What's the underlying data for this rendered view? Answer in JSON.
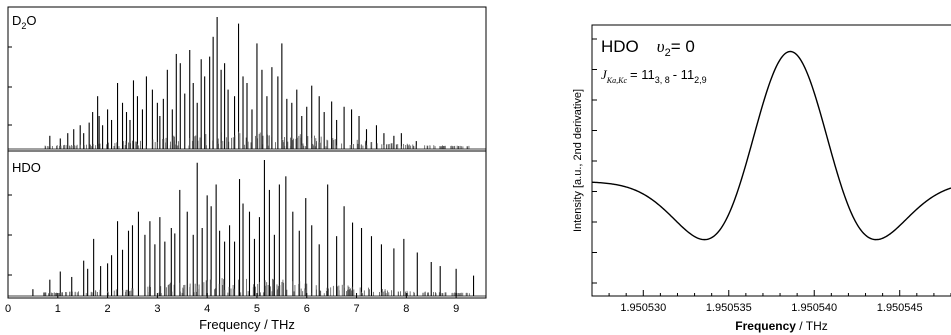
{
  "chart_data": [
    {
      "type": "line",
      "subtype": "stick-spectrum",
      "panels": [
        {
          "name": "D2O",
          "label_main": "D",
          "label_sub": "2",
          "label_end": "O"
        },
        {
          "name": "HDO",
          "label_main": "HDO"
        }
      ],
      "xlabel": "Frequency / THz",
      "xlim": [
        0,
        9.6
      ],
      "xticks": [
        "0",
        "1",
        "2",
        "3",
        "4",
        "5",
        "6",
        "7",
        "8",
        "9"
      ],
      "series": [
        {
          "name": "D2O",
          "x": [
            0.84,
            1.05,
            1.2,
            1.32,
            1.45,
            1.52,
            1.63,
            1.7,
            1.8,
            1.83,
            1.9,
            2.0,
            2.08,
            2.2,
            2.3,
            2.38,
            2.45,
            2.52,
            2.6,
            2.7,
            2.78,
            2.9,
            3.0,
            3.05,
            3.12,
            3.2,
            3.3,
            3.38,
            3.46,
            3.55,
            3.65,
            3.72,
            3.8,
            3.88,
            3.95,
            4.05,
            4.12,
            4.2,
            4.28,
            4.35,
            4.42,
            4.55,
            4.63,
            4.72,
            4.8,
            4.9,
            5.0,
            5.1,
            5.2,
            5.3,
            5.42,
            5.5,
            5.6,
            5.7,
            5.8,
            5.9,
            6.0,
            6.1,
            6.25,
            6.35,
            6.5,
            6.6,
            6.75,
            6.9,
            7.05,
            7.2,
            7.4,
            7.55,
            7.75,
            7.9,
            8.2
          ],
          "y": [
            0.1,
            0.08,
            0.12,
            0.15,
            0.18,
            0.12,
            0.2,
            0.28,
            0.4,
            0.25,
            0.18,
            0.3,
            0.22,
            0.5,
            0.35,
            0.28,
            0.22,
            0.52,
            0.4,
            0.3,
            0.55,
            0.45,
            0.35,
            0.25,
            0.38,
            0.6,
            0.3,
            0.72,
            0.65,
            0.42,
            0.75,
            0.5,
            0.35,
            0.68,
            0.55,
            0.7,
            0.85,
            1.0,
            0.6,
            0.65,
            0.45,
            0.4,
            0.95,
            0.55,
            0.5,
            0.3,
            0.8,
            0.6,
            0.4,
            0.62,
            0.55,
            0.8,
            0.38,
            0.35,
            0.45,
            0.25,
            0.32,
            0.48,
            0.4,
            0.28,
            0.36,
            0.22,
            0.32,
            0.3,
            0.25,
            0.15,
            0.18,
            0.12,
            0.1,
            0.12,
            0.06
          ]
        },
        {
          "name": "HDO",
          "x": [
            0.5,
            0.84,
            1.05,
            1.28,
            1.52,
            1.6,
            1.72,
            1.86,
            2.0,
            2.08,
            2.2,
            2.3,
            2.42,
            2.5,
            2.62,
            2.75,
            2.85,
            2.95,
            3.05,
            3.15,
            3.28,
            3.35,
            3.45,
            3.6,
            3.72,
            3.8,
            3.9,
            4.0,
            4.08,
            4.18,
            4.25,
            4.35,
            4.45,
            4.55,
            4.65,
            4.72,
            4.85,
            4.95,
            5.05,
            5.15,
            5.25,
            5.35,
            5.45,
            5.58,
            5.72,
            5.85,
            5.98,
            6.1,
            6.25,
            6.42,
            6.6,
            6.75,
            6.92,
            7.1,
            7.3,
            7.5,
            7.75,
            7.95,
            8.22,
            8.5,
            8.68,
            9.0,
            9.35
          ],
          "y": [
            0.05,
            0.12,
            0.18,
            0.14,
            0.26,
            0.2,
            0.42,
            0.22,
            0.24,
            0.3,
            0.55,
            0.34,
            0.48,
            0.52,
            0.62,
            0.45,
            0.55,
            0.38,
            0.58,
            0.4,
            0.5,
            0.46,
            0.78,
            0.62,
            0.45,
            0.98,
            0.5,
            0.74,
            0.66,
            0.82,
            0.48,
            0.4,
            0.52,
            0.4,
            0.86,
            0.68,
            0.62,
            0.42,
            0.58,
            1.0,
            0.78,
            0.45,
            0.82,
            0.88,
            0.62,
            0.48,
            0.72,
            0.52,
            0.38,
            0.82,
            0.44,
            0.66,
            0.54,
            0.5,
            0.44,
            0.38,
            0.35,
            0.42,
            0.32,
            0.25,
            0.22,
            0.2,
            0.15
          ]
        }
      ]
    },
    {
      "type": "line",
      "title_main": "HDO",
      "title_v": "υ",
      "title_v_sub": "2",
      "title_v_rest": "= 0",
      "line2_j": "J",
      "line2_j_sub": "Ka,Kc",
      "line2_eq": "= 11",
      "line2_a_sub": "3, 8",
      "line2_dash": "- 11",
      "line2_b_sub": "2,9",
      "xlabel_bold": "Frequency",
      "xlabel_rest": " / THz",
      "ylabel": "Intensity [a.u., 2nd derivative]",
      "xlim": [
        1.950527,
        1.950548
      ],
      "xticks": [
        {
          "value": 1.95053,
          "label": "1.950530"
        },
        {
          "value": 1.950535,
          "label": "1.950535"
        },
        {
          "value": 1.95054,
          "label": "1.950540"
        },
        {
          "value": 1.950545,
          "label": "1.950545"
        }
      ],
      "ylim": [
        -1.0,
        1.25
      ],
      "grid": false,
      "line_center": 1.9505386,
      "line_width": 4.1e-06
    }
  ]
}
